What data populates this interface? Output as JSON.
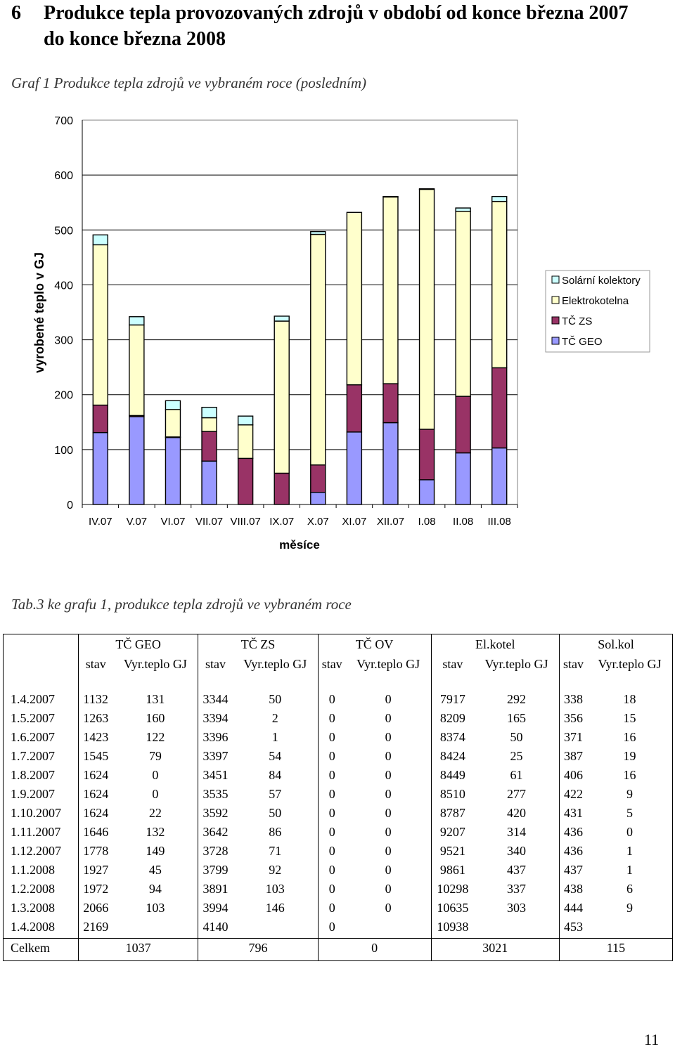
{
  "heading": {
    "number": "6",
    "text": "Produkce tepla provozovaných zdrojů v období od konce března 2007 do konce března 2008"
  },
  "graph_caption": "Graf 1 Produkce tepla zdrojů ve vybraném roce (posledním)",
  "chart_data": {
    "type": "bar",
    "stacked": true,
    "title": "",
    "xlabel": "měsíce",
    "ylabel": "vyrobené teplo v GJ",
    "ylim": [
      0,
      700
    ],
    "yticks": [
      0,
      100,
      200,
      300,
      400,
      500,
      600,
      700
    ],
    "categories": [
      "IV.07",
      "V.07",
      "VI.07",
      "VII.07",
      "VIII.07",
      "IX.07",
      "X.07",
      "XI.07",
      "XII.07",
      "I.08",
      "II.08",
      "III.08"
    ],
    "series": [
      {
        "name": "TČ GEO",
        "color": "#9999ff",
        "values": [
          131,
          160,
          122,
          79,
          0,
          0,
          22,
          132,
          149,
          45,
          94,
          103
        ]
      },
      {
        "name": "TČ ZS",
        "color": "#993366",
        "values": [
          50,
          2,
          1,
          54,
          84,
          57,
          50,
          86,
          71,
          92,
          103,
          146
        ]
      },
      {
        "name": "Elektrokotelna",
        "color": "#ffffcc",
        "values": [
          292,
          165,
          50,
          25,
          61,
          277,
          420,
          314,
          340,
          437,
          337,
          303
        ]
      },
      {
        "name": "Solární kolektory",
        "color": "#ccffff",
        "values": [
          18,
          15,
          16,
          19,
          16,
          9,
          5,
          0,
          1,
          1,
          6,
          9
        ]
      }
    ],
    "legend_order": [
      "Solární kolektory",
      "Elektrokotelna",
      "TČ ZS",
      "TČ GEO"
    ],
    "legend_position": "right"
  },
  "table_caption": "Tab.3 ke grafu 1, produkce tepla zdrojů ve vybraném roce",
  "table": {
    "groups": [
      "TČ GEO",
      "TČ ZS",
      "TČ OV",
      "El.kotel",
      "Sol.kol"
    ],
    "subheaders": [
      "stav",
      "Vyr.teplo GJ"
    ],
    "rows": [
      {
        "date": "1.4.2007",
        "cells": [
          "1132",
          "131",
          "3344",
          "50",
          "0",
          "0",
          "7917",
          "292",
          "338",
          "18"
        ]
      },
      {
        "date": "1.5.2007",
        "cells": [
          "1263",
          "160",
          "3394",
          "2",
          "0",
          "0",
          "8209",
          "165",
          "356",
          "15"
        ]
      },
      {
        "date": "1.6.2007",
        "cells": [
          "1423",
          "122",
          "3396",
          "1",
          "0",
          "0",
          "8374",
          "50",
          "371",
          "16"
        ]
      },
      {
        "date": "1.7.2007",
        "cells": [
          "1545",
          "79",
          "3397",
          "54",
          "0",
          "0",
          "8424",
          "25",
          "387",
          "19"
        ]
      },
      {
        "date": "1.8.2007",
        "cells": [
          "1624",
          "0",
          "3451",
          "84",
          "0",
          "0",
          "8449",
          "61",
          "406",
          "16"
        ]
      },
      {
        "date": "1.9.2007",
        "cells": [
          "1624",
          "0",
          "3535",
          "57",
          "0",
          "0",
          "8510",
          "277",
          "422",
          "9"
        ]
      },
      {
        "date": "1.10.2007",
        "cells": [
          "1624",
          "22",
          "3592",
          "50",
          "0",
          "0",
          "8787",
          "420",
          "431",
          "5"
        ]
      },
      {
        "date": "1.11.2007",
        "cells": [
          "1646",
          "132",
          "3642",
          "86",
          "0",
          "0",
          "9207",
          "314",
          "436",
          "0"
        ]
      },
      {
        "date": "1.12.2007",
        "cells": [
          "1778",
          "149",
          "3728",
          "71",
          "0",
          "0",
          "9521",
          "340",
          "436",
          "1"
        ]
      },
      {
        "date": "1.1.2008",
        "cells": [
          "1927",
          "45",
          "3799",
          "92",
          "0",
          "0",
          "9861",
          "437",
          "437",
          "1"
        ]
      },
      {
        "date": "1.2.2008",
        "cells": [
          "1972",
          "94",
          "3891",
          "103",
          "0",
          "0",
          "10298",
          "337",
          "438",
          "6"
        ]
      },
      {
        "date": "1.3.2008",
        "cells": [
          "2066",
          "103",
          "3994",
          "146",
          "0",
          "0",
          "10635",
          "303",
          "444",
          "9"
        ]
      },
      {
        "date": "1.4.2008",
        "cells": [
          "2169",
          "",
          "4140",
          "",
          "0",
          "",
          "10938",
          "",
          "453",
          ""
        ]
      }
    ],
    "total": {
      "label": "Celkem",
      "values": [
        "1037",
        "796",
        "0",
        "3021",
        "115"
      ]
    }
  },
  "page_number": "11"
}
